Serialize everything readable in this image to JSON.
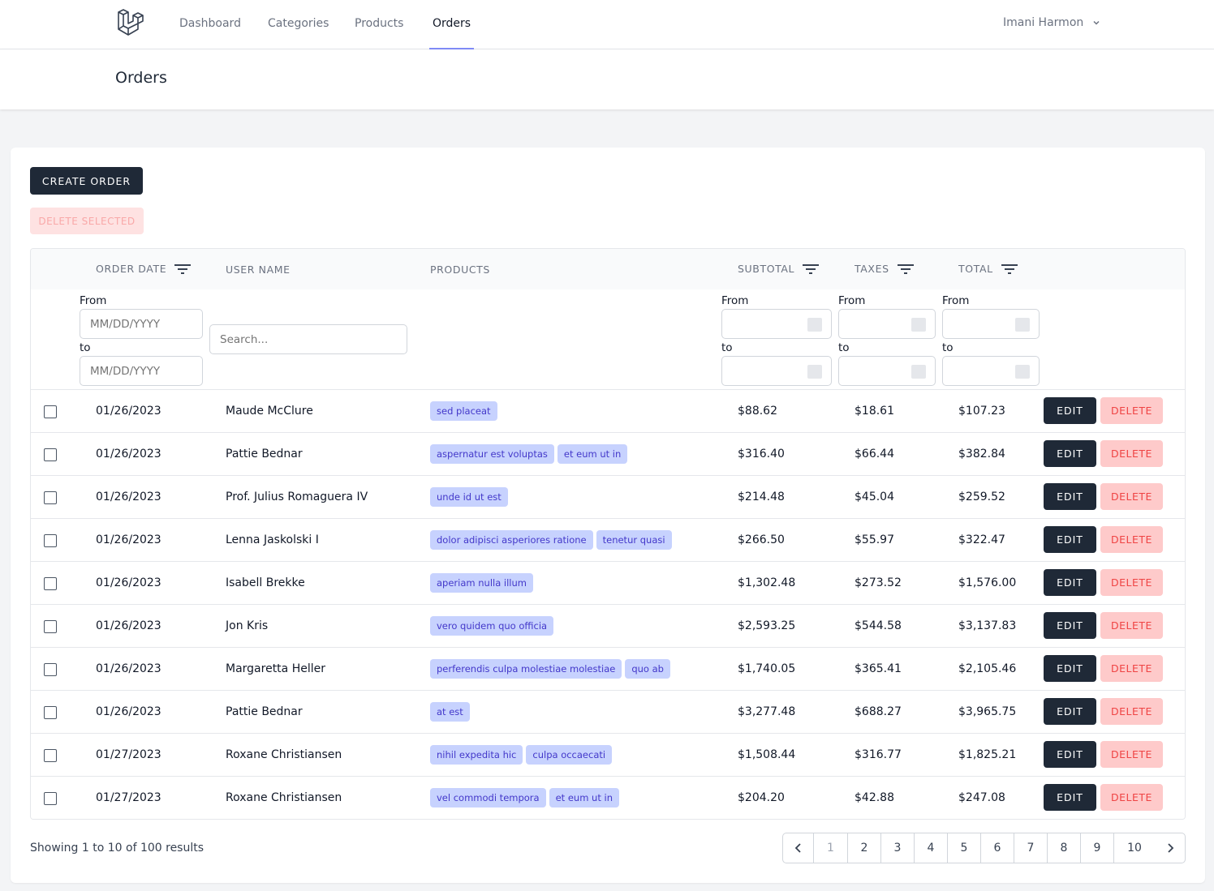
{
  "nav": {
    "links": [
      "Dashboard",
      "Categories",
      "Products",
      "Orders"
    ],
    "active": "Orders",
    "user": "Imani Harmon"
  },
  "page_title": "Orders",
  "actions": {
    "create": "CREATE ORDER",
    "delete_selected": "DELETE SELECTED"
  },
  "columns": {
    "order_date": "ORDER DATE",
    "user_name": "USER NAME",
    "products": "PRODUCTS",
    "subtotal": "SUBTOTAL",
    "taxes": "TAXES",
    "total": "TOTAL"
  },
  "filters": {
    "from": "From",
    "to": "to",
    "date_placeholder": "MM/DD/YYYY",
    "search_placeholder": "Search..."
  },
  "row_actions": {
    "edit": "EDIT",
    "delete": "DELETE"
  },
  "rows": [
    {
      "date": "01/26/2023",
      "user": "Maude McClure",
      "products": [
        "sed placeat"
      ],
      "subtotal": "$88.62",
      "taxes": "$18.61",
      "total": "$107.23"
    },
    {
      "date": "01/26/2023",
      "user": "Pattie Bednar",
      "products": [
        "aspernatur est voluptas",
        "et eum ut in"
      ],
      "subtotal": "$316.40",
      "taxes": "$66.44",
      "total": "$382.84"
    },
    {
      "date": "01/26/2023",
      "user": "Prof. Julius Romaguera IV",
      "products": [
        "unde id ut est"
      ],
      "subtotal": "$214.48",
      "taxes": "$45.04",
      "total": "$259.52"
    },
    {
      "date": "01/26/2023",
      "user": "Lenna Jaskolski I",
      "products": [
        "dolor adipisci asperiores ratione",
        "tenetur quasi"
      ],
      "subtotal": "$266.50",
      "taxes": "$55.97",
      "total": "$322.47"
    },
    {
      "date": "01/26/2023",
      "user": "Isabell Brekke",
      "products": [
        "aperiam nulla illum"
      ],
      "subtotal": "$1,302.48",
      "taxes": "$273.52",
      "total": "$1,576.00"
    },
    {
      "date": "01/26/2023",
      "user": "Jon Kris",
      "products": [
        "vero quidem quo officia"
      ],
      "subtotal": "$2,593.25",
      "taxes": "$544.58",
      "total": "$3,137.83"
    },
    {
      "date": "01/26/2023",
      "user": "Margaretta Heller",
      "products": [
        "perferendis culpa molestiae molestiae",
        "quo ab"
      ],
      "subtotal": "$1,740.05",
      "taxes": "$365.41",
      "total": "$2,105.46"
    },
    {
      "date": "01/26/2023",
      "user": "Pattie Bednar",
      "products": [
        "at est"
      ],
      "subtotal": "$3,277.48",
      "taxes": "$688.27",
      "total": "$3,965.75"
    },
    {
      "date": "01/27/2023",
      "user": "Roxane Christiansen",
      "products": [
        "nihil expedita hic",
        "culpa occaecati"
      ],
      "subtotal": "$1,508.44",
      "taxes": "$316.77",
      "total": "$1,825.21"
    },
    {
      "date": "01/27/2023",
      "user": "Roxane Christiansen",
      "products": [
        "vel commodi tempora",
        "et eum ut in"
      ],
      "subtotal": "$204.20",
      "taxes": "$42.88",
      "total": "$247.08"
    }
  ],
  "pagination": {
    "summary": "Showing 1 to 10 of 100 results",
    "pages": [
      "1",
      "2",
      "3",
      "4",
      "5",
      "6",
      "7",
      "8",
      "9",
      "10"
    ]
  },
  "icons": {
    "logo": "laravel-logo",
    "user_chevron": "chevron-down-icon",
    "filter": "filter-icon",
    "prev": "chevron-left-icon",
    "next": "chevron-right-icon"
  }
}
